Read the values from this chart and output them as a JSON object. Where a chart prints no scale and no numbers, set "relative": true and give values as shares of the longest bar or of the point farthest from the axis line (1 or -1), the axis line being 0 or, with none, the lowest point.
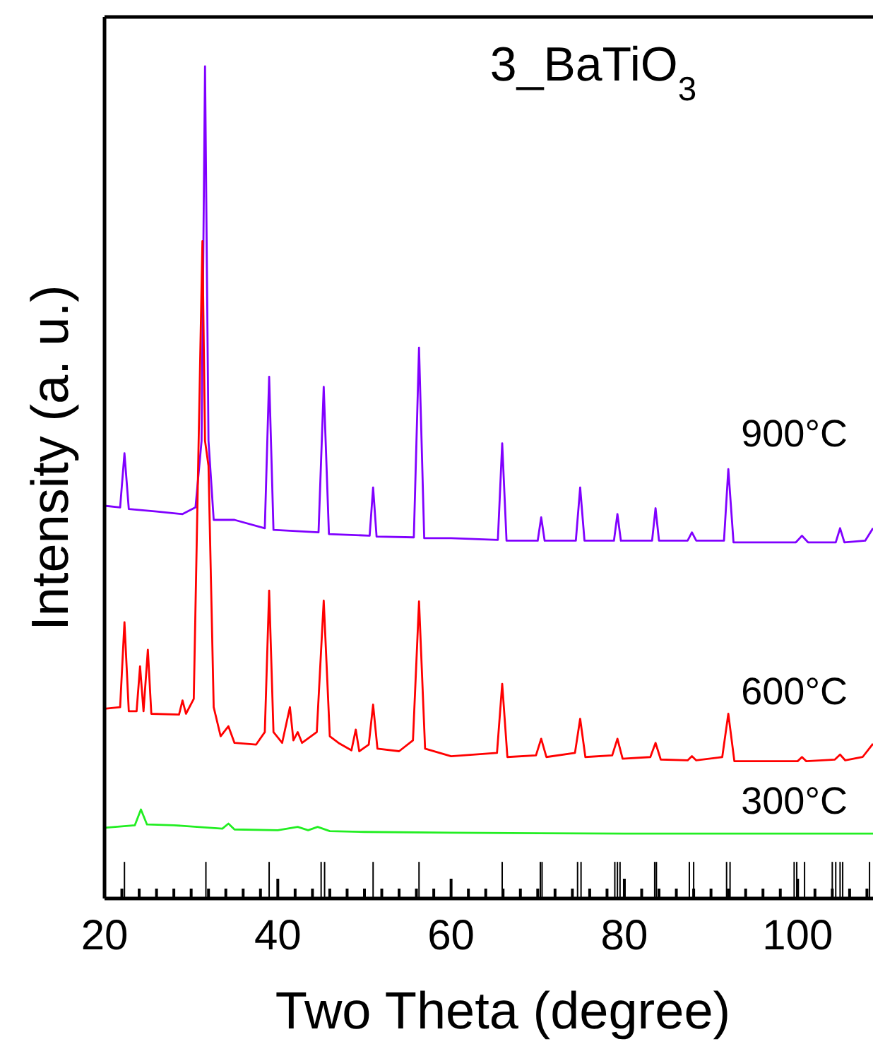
{
  "chart_data": {
    "type": "line",
    "title": "3_BaTiO$_{3}$",
    "xlabel": "Two Theta (degree)",
    "ylabel": "Intensity (a. u.)",
    "relative": true,
    "xlim": [
      20,
      108.7
    ],
    "xticks": [
      20,
      {
        "value": 22,
        "label": null
      },
      {
        "value": 24,
        "label": null
      },
      {
        "value": 26,
        "label": null
      },
      {
        "value": 28,
        "label": null
      },
      {
        "value": 30,
        "label": null
      },
      {
        "value": 32,
        "label": null
      },
      {
        "value": 34,
        "label": null
      },
      {
        "value": 36,
        "label": null
      },
      {
        "value": 38,
        "label": null
      },
      40,
      {
        "value": 42,
        "label": null
      },
      {
        "value": 44,
        "label": null
      },
      {
        "value": 46,
        "label": null
      },
      {
        "value": 48,
        "label": null
      },
      {
        "value": 50,
        "label": null
      },
      {
        "value": 52,
        "label": null
      },
      {
        "value": 54,
        "label": null
      },
      {
        "value": 56,
        "label": null
      },
      {
        "value": 58,
        "label": null
      },
      60,
      {
        "value": 62,
        "label": null
      },
      {
        "value": 64,
        "label": null
      },
      {
        "value": 66,
        "label": null
      },
      {
        "value": 68,
        "label": null
      },
      {
        "value": 70,
        "label": null
      },
      {
        "value": 72,
        "label": null
      },
      {
        "value": 74,
        "label": null
      },
      {
        "value": 76,
        "label": null
      },
      {
        "value": 78,
        "label": null
      },
      80,
      {
        "value": 82,
        "label": null
      },
      {
        "value": 84,
        "label": null
      },
      {
        "value": 86,
        "label": null
      },
      {
        "value": 88,
        "label": null
      },
      {
        "value": 90,
        "label": null
      },
      {
        "value": 92,
        "label": null
      },
      {
        "value": 94,
        "label": null
      },
      {
        "value": 96,
        "label": null
      },
      {
        "value": 98,
        "label": null
      },
      100,
      {
        "value": 102,
        "label": null
      },
      {
        "value": 104,
        "label": null
      },
      {
        "value": 106,
        "label": null
      },
      {
        "value": 108,
        "label": null
      }
    ],
    "series": [
      {
        "name": "900°C",
        "color": "#8000ff",
        "x": [
          20,
          21.8,
          22.3,
          22.8,
          26,
          29,
          30.5,
          31.2,
          31.6,
          32.0,
          32.6,
          35,
          38.5,
          39.0,
          39.5,
          44.7,
          45.3,
          45.9,
          50.6,
          51.0,
          51.4,
          55.7,
          56.3,
          56.9,
          60,
          65.4,
          65.9,
          66.4,
          70.0,
          70.4,
          70.8,
          74.4,
          74.9,
          75.4,
          78.8,
          79.2,
          79.6,
          83.2,
          83.6,
          84.0,
          87.3,
          87.8,
          88.3,
          91.5,
          92.0,
          92.6,
          99.8,
          100.5,
          101.2,
          104.4,
          104.9,
          105.4,
          107.8,
          108.7
        ],
        "values": [
          0.472,
          0.47,
          0.535,
          0.468,
          0.465,
          0.462,
          0.47,
          0.55,
          1,
          0.55,
          0.455,
          0.455,
          0.445,
          0.627,
          0.443,
          0.44,
          0.615,
          0.438,
          0.436,
          0.494,
          0.435,
          0.434,
          0.662,
          0.433,
          0.433,
          0.431,
          0.547,
          0.43,
          0.43,
          0.458,
          0.43,
          0.43,
          0.494,
          0.43,
          0.43,
          0.462,
          0.43,
          0.43,
          0.469,
          0.43,
          0.43,
          0.44,
          0.43,
          0.43,
          0.516,
          0.428,
          0.428,
          0.436,
          0.428,
          0.428,
          0.445,
          0.428,
          0.43,
          0.445
        ]
      },
      {
        "name": "600°C",
        "color": "#ff0000",
        "x": [
          20,
          21.8,
          22.3,
          22.8,
          23.7,
          24.1,
          24.5,
          25.0,
          25.4,
          28.6,
          29.0,
          29.4,
          30.3,
          31.3,
          31.6,
          32.0,
          32.6,
          33.4,
          34.3,
          35.0,
          37.5,
          38.5,
          39.0,
          39.5,
          40.5,
          41.4,
          41.8,
          42.3,
          42.8,
          44.5,
          45.3,
          46.0,
          47.0,
          48.5,
          49.0,
          49.4,
          50.5,
          51.0,
          51.5,
          54,
          55.6,
          56.3,
          57.0,
          60,
          65.3,
          65.9,
          66.5,
          69.8,
          70.4,
          71.0,
          74.3,
          74.9,
          75.5,
          78.6,
          79.2,
          79.8,
          83.0,
          83.6,
          84.2,
          87.3,
          87.8,
          88.3,
          91.3,
          92.0,
          92.7,
          100.0,
          100.5,
          101.0,
          104.3,
          104.9,
          105.5,
          107.5,
          108.7
        ],
        "values": [
          0.228,
          0.23,
          0.332,
          0.225,
          0.225,
          0.279,
          0.225,
          0.299,
          0.222,
          0.221,
          0.238,
          0.222,
          0.24,
          0.79,
          0.55,
          0.52,
          0.23,
          0.195,
          0.207,
          0.187,
          0.185,
          0.2,
          0.37,
          0.2,
          0.187,
          0.23,
          0.19,
          0.2,
          0.187,
          0.2,
          0.358,
          0.195,
          0.187,
          0.178,
          0.203,
          0.177,
          0.185,
          0.233,
          0.18,
          0.177,
          0.19,
          0.357,
          0.18,
          0.171,
          0.175,
          0.258,
          0.17,
          0.172,
          0.192,
          0.17,
          0.175,
          0.216,
          0.17,
          0.172,
          0.192,
          0.168,
          0.17,
          0.187,
          0.167,
          0.166,
          0.171,
          0.166,
          0.17,
          0.222,
          0.165,
          0.165,
          0.17,
          0.165,
          0.167,
          0.173,
          0.166,
          0.17,
          0.186
        ]
      },
      {
        "name": "300°C",
        "color": "#22ee22",
        "x": [
          20,
          23.5,
          24.2,
          24.9,
          28,
          33.6,
          34.3,
          35,
          40,
          42.3,
          43.5,
          44.6,
          46,
          50,
          60,
          80,
          108.7
        ],
        "values": [
          0.085,
          0.088,
          0.107,
          0.089,
          0.088,
          0.084,
          0.09,
          0.083,
          0.082,
          0.086,
          0.082,
          0.086,
          0.081,
          0.08,
          0.079,
          0.078,
          0.078
        ]
      },
      {
        "type": "bar",
        "color": "#000000",
        "x": [
          22.3,
          31.7,
          39.0,
          45.0,
          45.4,
          51.0,
          56.3,
          65.9,
          70.3,
          70.5,
          74.6,
          75.0,
          78.9,
          79.2,
          79.5,
          83.5,
          83.7,
          87.5,
          88.0,
          91.8,
          92.2,
          99.6,
          99.9,
          100.8,
          104.0,
          104.4,
          104.9,
          105.2,
          108.3
        ],
        "values": [
          0.044,
          0.044,
          0.044,
          0.044,
          0.044,
          0.044,
          0.044,
          0.044,
          0.044,
          0.044,
          0.044,
          0.044,
          0.044,
          0.044,
          0.044,
          0.044,
          0.044,
          0.044,
          0.044,
          0.044,
          0.044,
          0.044,
          0.044,
          0.044,
          0.044,
          0.044,
          0.044,
          0.044,
          0.044
        ]
      }
    ]
  }
}
